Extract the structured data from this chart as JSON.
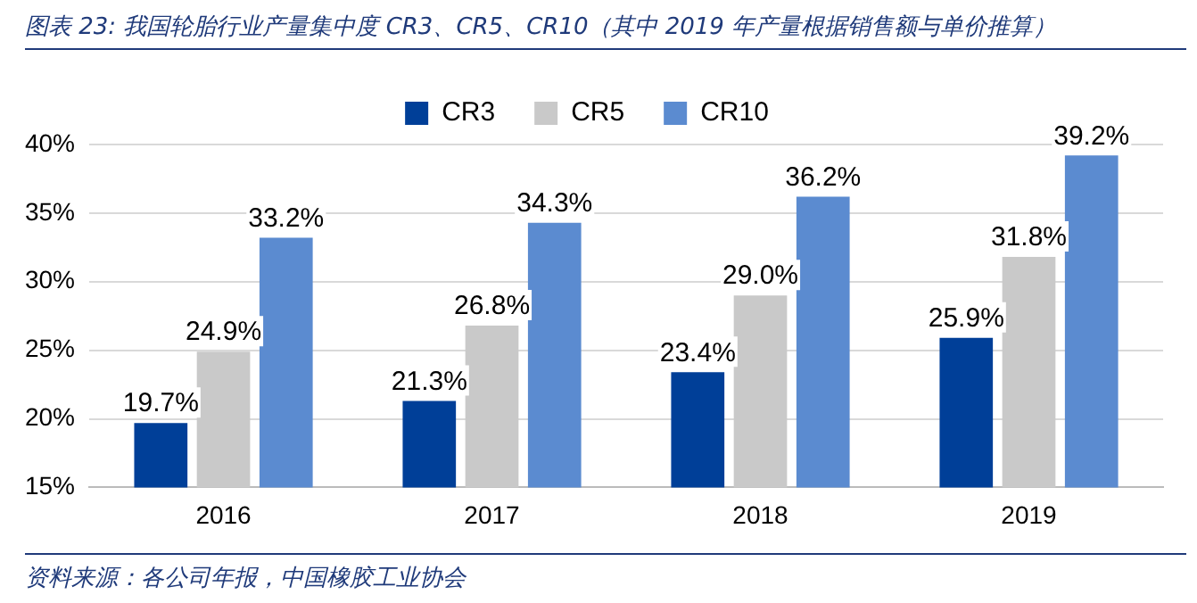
{
  "chart_data": {
    "type": "bar",
    "title": "图表 23: 我国轮胎行业产量集中度 CR3、CR5、CR10（其中 2019 年产量根据销售额与单价推算）",
    "annotations": [
      "资料来源：各公司年报，中国橡胶工业协会"
    ],
    "categories": [
      "2016",
      "2017",
      "2018",
      "2019"
    ],
    "series": [
      {
        "name": "CR3",
        "color": "#003f98",
        "values": [
          19.7,
          21.3,
          23.4,
          25.9
        ],
        "value_labels": [
          "19.7%",
          "21.3%",
          "23.4%",
          "25.9%"
        ]
      },
      {
        "name": "CR5",
        "color": "#c9c9c9",
        "values": [
          24.9,
          26.8,
          29.0,
          31.8
        ],
        "value_labels": [
          "24.9%",
          "26.8%",
          "29.0%",
          "31.8%"
        ]
      },
      {
        "name": "CR10",
        "color": "#5b8bd0",
        "values": [
          33.2,
          34.3,
          36.2,
          39.2
        ],
        "value_labels": [
          "33.2%",
          "34.3%",
          "36.2%",
          "39.2%"
        ]
      }
    ],
    "ylim": [
      15,
      40
    ],
    "yticks": [
      {
        "value": 15,
        "label": "15%"
      },
      {
        "value": 20,
        "label": "20%"
      },
      {
        "value": 25,
        "label": "25%"
      },
      {
        "value": 30,
        "label": "30%"
      },
      {
        "value": 35,
        "label": "35%"
      },
      {
        "value": 40,
        "label": "40%"
      }
    ],
    "grid": "y",
    "legend": "top"
  }
}
